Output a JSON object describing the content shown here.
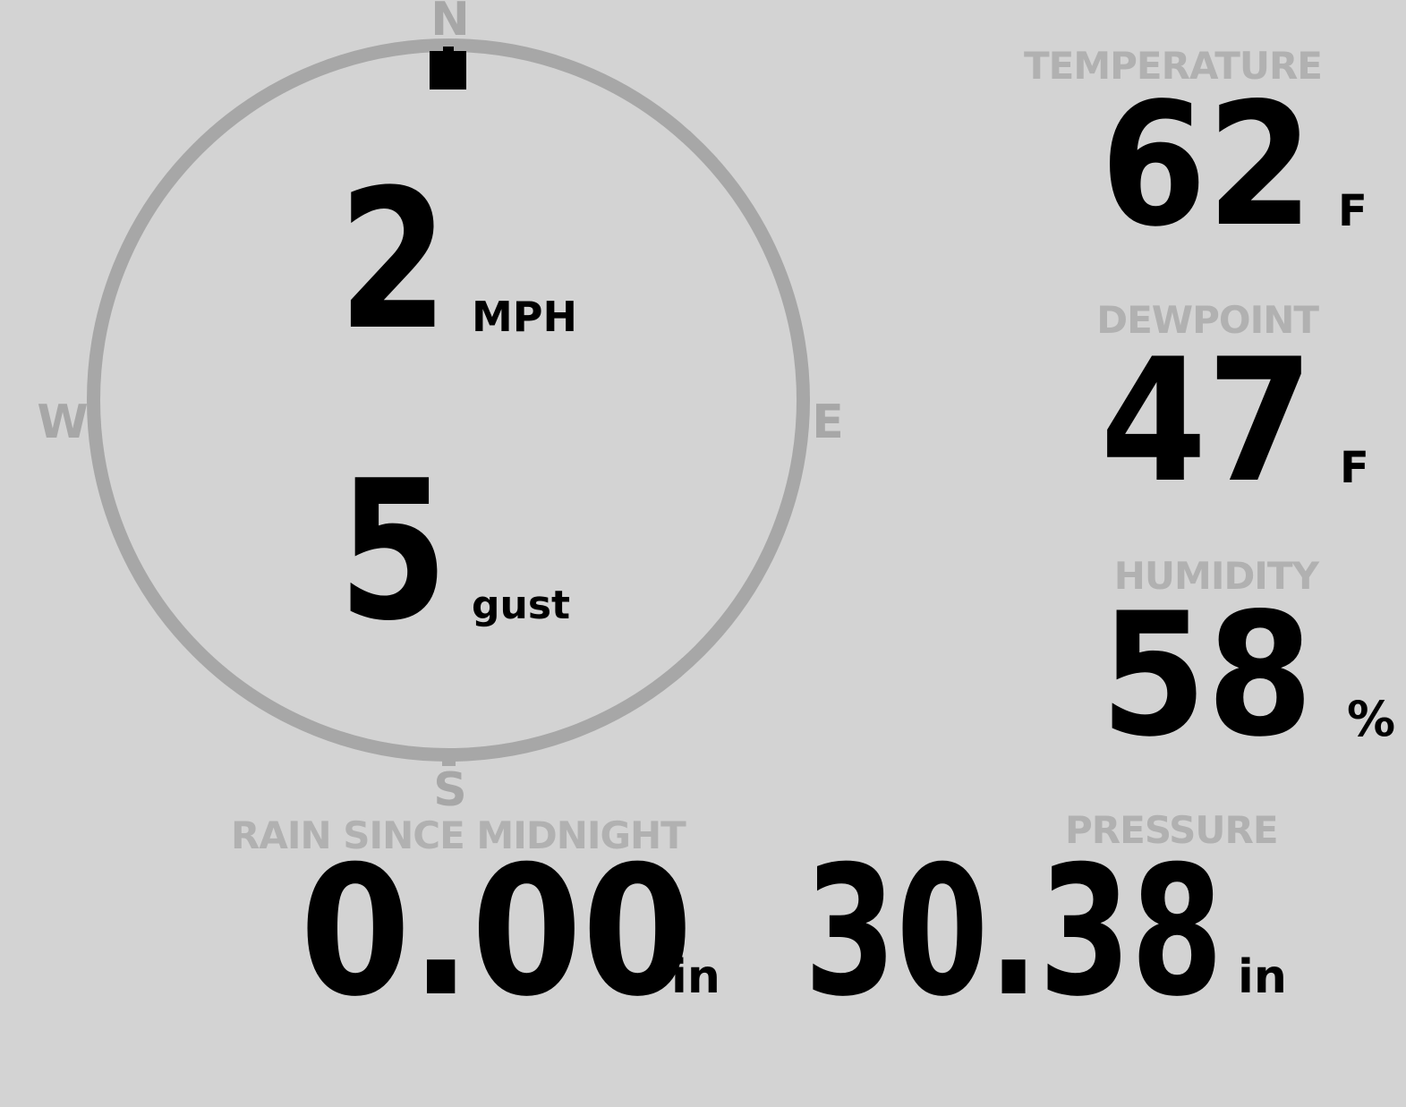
{
  "display": {
    "background_color": "#d3d3d3",
    "compass_gray": "#a7a7a7",
    "label_gray": "#b1b1b1",
    "value_black": "#000000"
  },
  "wind": {
    "cardinals": {
      "north": "N",
      "east": "E",
      "south": "S",
      "west": "W"
    },
    "speed": {
      "value": "2",
      "unit": "MPH"
    },
    "gust": {
      "value": "5",
      "unit": "gust"
    },
    "direction": "N"
  },
  "temperature": {
    "label": "TEMPERATURE",
    "value": "62",
    "unit": "F"
  },
  "dewpoint": {
    "label": "DEWPOINT",
    "value": "47",
    "unit": "F"
  },
  "humidity": {
    "label": "HUMIDITY",
    "value": "58",
    "unit": "%"
  },
  "rain": {
    "label": "RAIN SINCE MIDNIGHT",
    "value": "0.00",
    "unit": "in"
  },
  "pressure": {
    "label": "PRESSURE",
    "value": "30.38",
    "unit": "in"
  }
}
